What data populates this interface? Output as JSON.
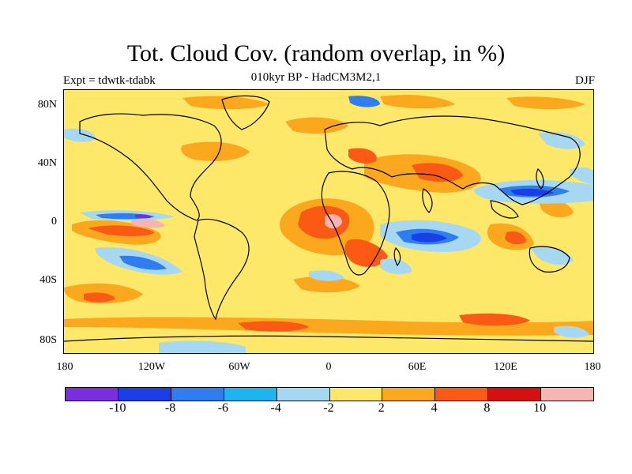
{
  "map": {
    "title": "Tot. Cloud Cov. (random overlap, in %)",
    "subtitle": "010kyr BP - HadCM3M2,1",
    "experiment_label": "Expt = tdwtk-tdabk",
    "season_label": "DJF",
    "lat_ticks": [
      "80N",
      "40N",
      "0",
      "40S",
      "80S"
    ],
    "lon_ticks": [
      "180",
      "120W",
      "60W",
      "0",
      "60E",
      "120E",
      "180"
    ],
    "projection": "cylindrical equidistant, 180W to 180E",
    "base_color": "#fde86a"
  },
  "legend": {
    "colors": [
      "#7b2ee0",
      "#1a3fe8",
      "#2f7df0",
      "#1eb4f0",
      "#a6d8f2",
      "#fde86a",
      "#fca81f",
      "#fa5a14",
      "#d61010",
      "#f8b4b0"
    ],
    "tick_labels": [
      "-10",
      "-8",
      "-6",
      "-4",
      "-2",
      "2",
      "4",
      "8",
      "10"
    ]
  }
}
